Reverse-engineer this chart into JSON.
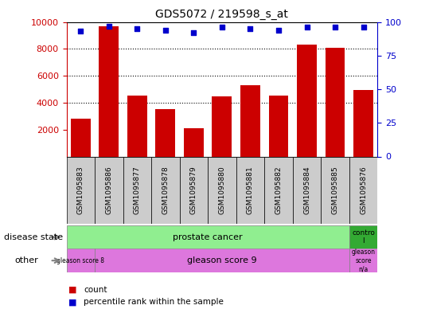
{
  "title": "GDS5072 / 219598_s_at",
  "samples": [
    "GSM1095883",
    "GSM1095886",
    "GSM1095877",
    "GSM1095878",
    "GSM1095879",
    "GSM1095880",
    "GSM1095881",
    "GSM1095882",
    "GSM1095884",
    "GSM1095885",
    "GSM1095876"
  ],
  "counts": [
    2800,
    9700,
    4500,
    3500,
    2100,
    4450,
    5300,
    4500,
    8300,
    8100,
    4950
  ],
  "percentile_ranks": [
    93,
    97,
    95,
    94,
    92,
    96,
    95,
    94,
    96,
    96,
    96
  ],
  "ylim_left": [
    0,
    10000
  ],
  "ylim_right": [
    0,
    100
  ],
  "yticks_left": [
    2000,
    4000,
    6000,
    8000,
    10000
  ],
  "yticks_right": [
    0,
    25,
    50,
    75,
    100
  ],
  "bar_color": "#cc0000",
  "dot_color": "#0000cc",
  "disease_state_labels": [
    "prostate cancer",
    "contro\nl"
  ],
  "disease_state_colors": [
    "#90ee90",
    "#33aa33"
  ],
  "disease_state_text_colors": [
    "#000000",
    "#000000"
  ],
  "other_labels": [
    "gleason score 8",
    "gleason score 9",
    "gleason\nscore\nn/a"
  ],
  "other_colors": [
    "#dd77dd",
    "#dd77dd",
    "#dd77dd"
  ],
  "grid_color": "#000000",
  "tick_label_color_left": "#cc0000",
  "tick_label_color_right": "#0000cc",
  "xtick_bg_color": "#cccccc",
  "legend_count_color": "#cc0000",
  "legend_dot_color": "#0000cc"
}
